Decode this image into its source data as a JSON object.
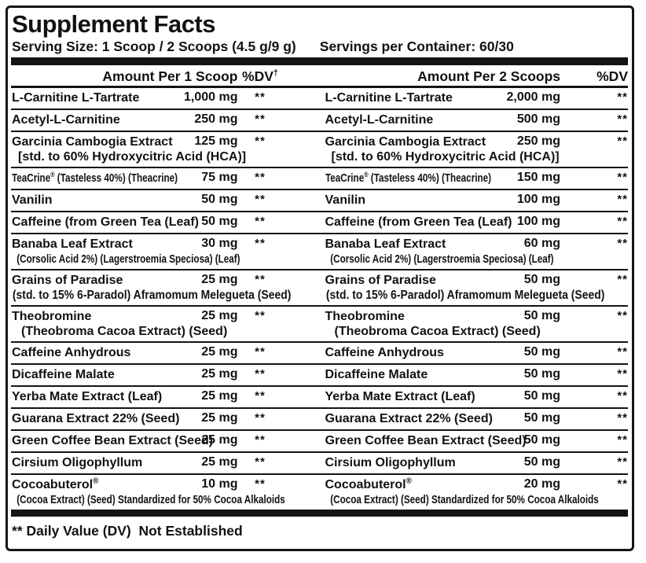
{
  "title": "Supplement Facts",
  "serving": {
    "size": "Serving Size: 1 Scoop / 2 Scoops (4.5 g/9 g)",
    "per_container": "Servings per Container: 60/30"
  },
  "headers": {
    "left": {
      "amount": "Amount Per 1 Scoop",
      "dv": "%DV†"
    },
    "right": {
      "amount": "Amount Per 2 Scoops",
      "dv": "%DV"
    }
  },
  "rows": [
    {
      "left": {
        "name": "L-Carnitine L-Tartrate",
        "amount": "1,000 mg",
        "dv": "**"
      },
      "right": {
        "name": "L-Carnitine L-Tartrate",
        "amount": "2,000 mg",
        "dv": "**"
      },
      "style": {}
    },
    {
      "left": {
        "name": "Acetyl-L-Carnitine",
        "amount": "250 mg",
        "dv": "**"
      },
      "right": {
        "name": "Acetyl-L-Carnitine",
        "amount": "500 mg",
        "dv": "**"
      },
      "style": {}
    },
    {
      "left": {
        "name": "Garcinia Cambogia Extract",
        "amount": "125 mg",
        "dv": "**",
        "sub": "[std. to 60% Hydroxycitric Acid (HCA)]"
      },
      "right": {
        "name": "Garcinia Cambogia Extract",
        "amount": "250 mg",
        "dv": "**",
        "sub": "[std. to 60% Hydroxycitric Acid (HCA)]"
      },
      "style": {
        "sub_indent": 1
      }
    },
    {
      "left": {
        "name": "TeaCrine® (Tasteless 40%) (Theacrine)",
        "amount": "75 mg",
        "dv": "**"
      },
      "right": {
        "name": "TeaCrine® (Tasteless 40%) (Theacrine)",
        "amount": "150 mg",
        "dv": "**"
      },
      "style": {
        "name_cond": true
      }
    },
    {
      "left": {
        "name": "Vanilin",
        "amount": "50 mg",
        "dv": "**"
      },
      "right": {
        "name": "Vanilin",
        "amount": "100 mg",
        "dv": "**"
      },
      "style": {}
    },
    {
      "left": {
        "name": "Caffeine (from Green Tea (Leaf)",
        "amount": "50 mg",
        "dv": "**"
      },
      "right": {
        "name": "Caffeine (from Green Tea (Leaf)",
        "amount": "100 mg",
        "dv": "**"
      },
      "style": {}
    },
    {
      "left": {
        "name": "Banaba Leaf Extract",
        "amount": "30 mg",
        "dv": "**",
        "sub": "(Corsolic Acid 2%) (Lagerstroemia Speciosa) (Leaf)"
      },
      "right": {
        "name": "Banaba Leaf Extract",
        "amount": "60 mg",
        "dv": "**",
        "sub": "(Corsolic Acid 2%) (Lagerstroemia Speciosa) (Leaf)"
      },
      "style": {
        "sub_indent": 1,
        "sub_cond": "cond"
      }
    },
    {
      "left": {
        "name": "Grains of Paradise",
        "amount": "25 mg",
        "dv": "**",
        "sub": "(std. to 15% 6-Paradol) Aframomum Melegueta (Seed)"
      },
      "right": {
        "name": "Grains of Paradise",
        "amount": "50 mg",
        "dv": "**",
        "sub": "(std. to 15% 6-Paradol) Aframomum Melegueta (Seed)"
      },
      "style": {
        "sub_indent": 0,
        "sub_cond": "cond-md"
      }
    },
    {
      "left": {
        "name": "Theobromine",
        "amount": "25 mg",
        "dv": "**",
        "sub": "(Theobroma Cacoa Extract) (Seed)"
      },
      "right": {
        "name": "Theobromine",
        "amount": "50 mg",
        "dv": "**",
        "sub": "(Theobroma Cacoa Extract) (Seed)"
      },
      "style": {
        "sub_indent": 2
      }
    },
    {
      "left": {
        "name": "Caffeine Anhydrous",
        "amount": "25 mg",
        "dv": "**"
      },
      "right": {
        "name": "Caffeine Anhydrous",
        "amount": "50 mg",
        "dv": "**"
      },
      "style": {}
    },
    {
      "left": {
        "name": "Dicaffeine Malate",
        "amount": "25 mg",
        "dv": "**"
      },
      "right": {
        "name": "Dicaffeine Malate",
        "amount": "50 mg",
        "dv": "**"
      },
      "style": {}
    },
    {
      "left": {
        "name": "Yerba Mate Extract (Leaf)",
        "amount": "25 mg",
        "dv": "**"
      },
      "right": {
        "name": "Yerba Mate Extract (Leaf)",
        "amount": "50 mg",
        "dv": "**"
      },
      "style": {}
    },
    {
      "left": {
        "name": "Guarana Extract 22% (Seed)",
        "amount": "25 mg",
        "dv": "**"
      },
      "right": {
        "name": "Guarana Extract 22% (Seed)",
        "amount": "50 mg",
        "dv": "**"
      },
      "style": {}
    },
    {
      "left": {
        "name": "Green Coffee Bean Extract (Seed)",
        "amount": "25 mg",
        "dv": "**"
      },
      "right": {
        "name": "Green Coffee Bean Extract (Seed)",
        "amount": "50 mg",
        "dv": "**"
      },
      "style": {}
    },
    {
      "left": {
        "name": "Cirsium Oligophyllum",
        "amount": "25 mg",
        "dv": "**"
      },
      "right": {
        "name": "Cirsium Oligophyllum",
        "amount": "50 mg",
        "dv": "**"
      },
      "style": {}
    },
    {
      "left": {
        "name": "Cocoabuterol®",
        "amount": "10 mg",
        "dv": "**",
        "sub": "(Cocoa Extract) (Seed) Standardized for 50% Cocoa Alkaloids"
      },
      "right": {
        "name": "Cocoabuterol®",
        "amount": "20 mg",
        "dv": "**",
        "sub": "(Cocoa Extract) (Seed) Standardized for 50% Cocoa Alkaloids"
      },
      "style": {
        "sub_indent": 1,
        "sub_cond": "cond"
      }
    }
  ],
  "footnote": "** Daily Value (DV)  Not Established",
  "colors": {
    "ink": "#141414",
    "paper": "#ffffff"
  }
}
